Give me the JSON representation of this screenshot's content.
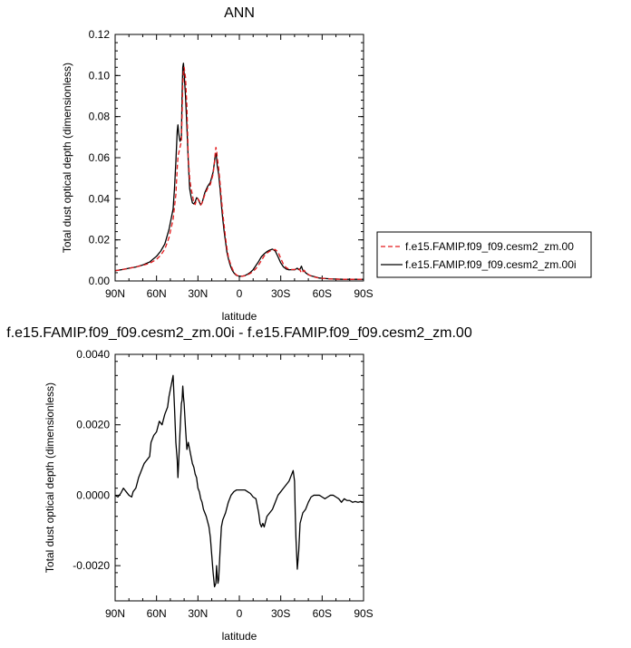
{
  "colors": {
    "red": "#e41a1c",
    "black": "#000000"
  },
  "chart_data": [
    {
      "type": "line",
      "title": "ANN",
      "xlabel": "latitude",
      "ylabel": "Total dust optical depth (dimensionless)",
      "xlim": [
        90,
        -90
      ],
      "ylim": [
        0,
        0.12
      ],
      "x_tick_labels": [
        "90N",
        "60N",
        "30N",
        "0",
        "30S",
        "60S",
        "90S"
      ],
      "x_tick_values": [
        90,
        60,
        30,
        0,
        -30,
        -60,
        -90
      ],
      "y_tick_labels": [
        "0.00",
        "0.02",
        "0.04",
        "0.06",
        "0.08",
        "0.10",
        "0.12"
      ],
      "y_tick_values": [
        0,
        0.02,
        0.04,
        0.06,
        0.08,
        0.1,
        0.12
      ],
      "legend": "right",
      "series": [
        {
          "name": "f.e15.FAMIP.f09_f09.cesm2_zm.00",
          "color": "#e41a1c",
          "dash": "dashed",
          "x": [
            90,
            85,
            80,
            75,
            70,
            65,
            60,
            57,
            54,
            51,
            48,
            46,
            45,
            44.5,
            44,
            43,
            42,
            41.5,
            41,
            40.5,
            40,
            39,
            38,
            37,
            36,
            35,
            34,
            33,
            32,
            31,
            30,
            29,
            28,
            27,
            25,
            23,
            21,
            19,
            18,
            17.5,
            17,
            16.5,
            16,
            15,
            14,
            13,
            12,
            11,
            10,
            9,
            8,
            7,
            6,
            5,
            4,
            3,
            2,
            1,
            0,
            -2,
            -4,
            -6,
            -8,
            -10,
            -12,
            -14,
            -16,
            -18,
            -20,
            -22,
            -24,
            -26,
            -28,
            -30,
            -32,
            -34,
            -36,
            -38,
            -40,
            -42,
            -43,
            -44,
            -45,
            -46,
            -47,
            -48,
            -50,
            -52,
            -55,
            -58,
            -62,
            -66,
            -70,
            -75,
            -80,
            -85,
            -90
          ],
          "y": [
            0.005,
            0.0055,
            0.0062,
            0.0068,
            0.0076,
            0.0086,
            0.0105,
            0.0125,
            0.0155,
            0.021,
            0.03,
            0.042,
            0.055,
            0.06,
            0.062,
            0.065,
            0.068,
            0.08,
            0.095,
            0.102,
            0.104,
            0.099,
            0.085,
            0.06,
            0.05,
            0.045,
            0.042,
            0.038,
            0.0372,
            0.0395,
            0.04,
            0.039,
            0.037,
            0.038,
            0.042,
            0.045,
            0.047,
            0.052,
            0.058,
            0.062,
            0.065,
            0.064,
            0.06,
            0.055,
            0.048,
            0.04,
            0.033,
            0.027,
            0.021,
            0.016,
            0.012,
            0.0095,
            0.0075,
            0.0058,
            0.0045,
            0.0035,
            0.0029,
            0.0025,
            0.0023,
            0.0023,
            0.0025,
            0.003,
            0.0037,
            0.0047,
            0.006,
            0.0078,
            0.01,
            0.0122,
            0.0135,
            0.0145,
            0.015,
            0.0153,
            0.0142,
            0.011,
            0.008,
            0.0065,
            0.0057,
            0.0055,
            0.0056,
            0.0055,
            0.0059,
            0.0052,
            0.0038,
            0.0045,
            0.0052,
            0.0042,
            0.0032,
            0.0024,
            0.0018,
            0.0014,
            0.0012,
            0.001,
            0.0009,
            0.0008,
            0.0008,
            0.0008,
            0.0008
          ]
        },
        {
          "name": "f.e15.FAMIP.f09_f09.cesm2_zm.00i",
          "color": "#000000",
          "dash": "solid",
          "x": [
            90,
            85,
            80,
            75,
            70,
            65,
            60,
            57,
            54,
            51,
            48,
            47,
            46,
            45,
            44.5,
            44,
            43,
            42,
            41.5,
            41,
            40.5,
            40,
            39,
            38,
            37,
            36,
            35,
            34,
            33,
            32,
            31,
            30,
            29,
            28,
            27,
            25,
            23,
            21,
            19,
            18,
            17.5,
            17,
            16.5,
            16,
            15,
            14,
            13,
            12,
            11,
            10,
            9,
            8,
            7,
            6,
            5,
            4,
            3,
            2,
            1,
            0,
            -2,
            -4,
            -6,
            -8,
            -10,
            -12,
            -14,
            -16,
            -18,
            -20,
            -22,
            -24,
            -26,
            -28,
            -30,
            -32,
            -34,
            -36,
            -38,
            -40,
            -42,
            -43,
            -44,
            -45,
            -46,
            -47,
            -48,
            -50,
            -52,
            -55,
            -58,
            -62,
            -66,
            -70,
            -75,
            -80,
            -85,
            -90
          ],
          "y": [
            0.005,
            0.0055,
            0.0062,
            0.0068,
            0.0078,
            0.0092,
            0.012,
            0.0145,
            0.018,
            0.025,
            0.035,
            0.045,
            0.058,
            0.073,
            0.076,
            0.072,
            0.068,
            0.07,
            0.09,
            0.104,
            0.106,
            0.101,
            0.09,
            0.075,
            0.058,
            0.045,
            0.041,
            0.038,
            0.0375,
            0.0385,
            0.0405,
            0.04,
            0.0385,
            0.037,
            0.038,
            0.043,
            0.046,
            0.048,
            0.053,
            0.058,
            0.061,
            0.062,
            0.06,
            0.056,
            0.052,
            0.045,
            0.037,
            0.03,
            0.024,
            0.019,
            0.014,
            0.011,
            0.0085,
            0.0065,
            0.005,
            0.004,
            0.0032,
            0.0027,
            0.0025,
            0.0023,
            0.0023,
            0.0026,
            0.0033,
            0.0042,
            0.0055,
            0.0075,
            0.0095,
            0.0118,
            0.0132,
            0.0143,
            0.015,
            0.0155,
            0.0146,
            0.0118,
            0.0088,
            0.0068,
            0.0058,
            0.0054,
            0.0055,
            0.0054,
            0.0062,
            0.0055,
            0.0058,
            0.0072,
            0.0052,
            0.0048,
            0.004,
            0.003,
            0.0025,
            0.002,
            0.0014,
            0.0012,
            0.001,
            0.0009,
            0.0008,
            0.0008,
            0.0008,
            0.0008
          ]
        }
      ]
    },
    {
      "type": "line",
      "title": "f.e15.FAMIP.f09_f09.cesm2_zm.00i - f.e15.FAMIP.f09_f09.cesm2_zm.00",
      "xlabel": "latitude",
      "ylabel": "Total dust optical depth (dimensionless)",
      "xlim": [
        90,
        -90
      ],
      "ylim": [
        -0.003,
        0.004
      ],
      "x_tick_labels": [
        "90N",
        "60N",
        "30N",
        "0",
        "30S",
        "60S",
        "90S"
      ],
      "x_tick_values": [
        90,
        60,
        30,
        0,
        -30,
        -60,
        -90
      ],
      "y_tick_labels": [
        "-0.0020",
        "0.0000",
        "0.0020",
        "0.0040"
      ],
      "y_tick_values": [
        -0.002,
        0,
        0.002,
        0.004
      ],
      "series": [
        {
          "color": "#000000",
          "dash": "solid",
          "x": [
            90,
            88,
            86,
            84,
            83,
            82,
            80,
            78,
            77,
            75,
            73,
            71,
            69,
            67,
            65,
            64,
            62,
            60,
            58,
            56,
            54,
            52,
            51,
            50,
            49,
            48,
            47,
            46,
            45,
            44.5,
            44,
            43,
            42,
            41.5,
            41,
            40.5,
            40,
            39,
            38,
            37,
            36,
            35,
            34,
            33,
            32,
            31,
            30,
            29,
            28,
            27,
            26,
            24,
            22,
            21,
            20,
            19,
            18,
            17,
            16.5,
            16,
            15.5,
            15,
            14,
            13,
            12,
            11,
            10,
            8,
            6,
            4,
            2,
            0,
            -2,
            -4,
            -6,
            -8,
            -10,
            -12,
            -14,
            -15,
            -16,
            -17,
            -18,
            -20,
            -22,
            -24,
            -26,
            -28,
            -30,
            -32,
            -34,
            -36,
            -37,
            -38,
            -39,
            -40,
            -40.5,
            -41,
            -42,
            -43,
            -44,
            -46,
            -48,
            -50,
            -52,
            -54,
            -56,
            -58,
            -60,
            -62,
            -64,
            -66,
            -68,
            -70,
            -72,
            -74,
            -76,
            -78,
            -80,
            -82,
            -84,
            -86,
            -88,
            -90
          ],
          "y": [
            0,
            -5e-05,
            5e-05,
            0.0002,
            0.00015,
            0.0001,
            0,
            -5e-05,
            0.0001,
            0.0002,
            0.0005,
            0.0007,
            0.0009,
            0.001,
            0.0011,
            0.0015,
            0.0017,
            0.0018,
            0.0021,
            0.002,
            0.0023,
            0.0025,
            0.0028,
            0.003,
            0.0032,
            0.0034,
            0.0025,
            0.0015,
            0.001,
            0.0005,
            0.0009,
            0.0018,
            0.0026,
            0.0027,
            0.0031,
            0.0028,
            0.0026,
            0.0019,
            0.0013,
            0.0015,
            0.0013,
            0.0011,
            0.0009,
            0.0008,
            0.0006,
            0.0005,
            0.0002,
            0.0001,
            -0.0001,
            -0.0002,
            -0.0004,
            -0.0006,
            -0.0009,
            -0.0012,
            -0.0017,
            -0.0022,
            -0.0026,
            -0.0025,
            -0.002,
            -0.0023,
            -0.0025,
            -0.0024,
            -0.0016,
            -0.0009,
            -0.0007,
            -0.0006,
            -0.0005,
            -0.0002,
            0,
            0.0001,
            0.00015,
            0.00015,
            0.00015,
            0.00015,
            0.0001,
            5e-05,
            -5e-05,
            -0.0001,
            -0.0005,
            -0.0008,
            -0.0009,
            -0.0008,
            -0.0009,
            -0.0006,
            -0.0005,
            -0.0004,
            -0.0002,
            0,
            0.0001,
            0.0002,
            0.0003,
            0.0004,
            0.0005,
            0.0006,
            0.0007,
            0.0004,
            -0.0005,
            -0.0012,
            -0.0021,
            -0.0016,
            -0.0008,
            -0.0005,
            -0.0004,
            -0.0002,
            -5e-05,
            0,
            0,
            0,
            -5e-05,
            -0.0001,
            -5e-05,
            0,
            0,
            -5e-05,
            -0.0001,
            -0.0002,
            -0.0001,
            -0.00015,
            -0.00015,
            -0.0002,
            -0.00018,
            -0.0002,
            -0.00018,
            -0.0002
          ]
        }
      ]
    }
  ]
}
